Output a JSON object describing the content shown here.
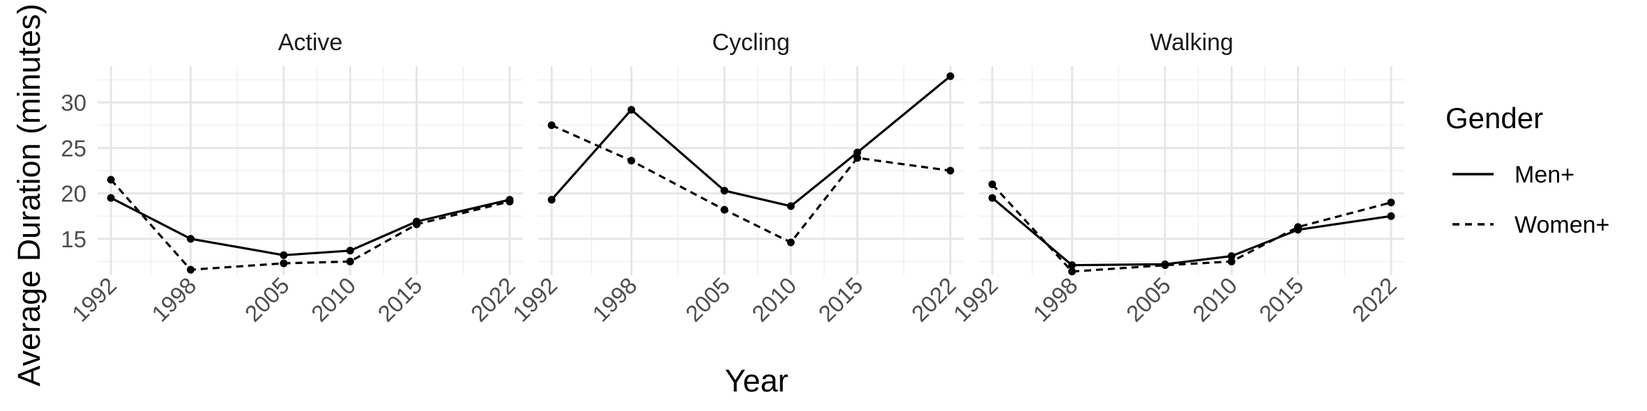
{
  "chart_data": {
    "type": "line",
    "facet_labels": [
      "Active",
      "Cycling",
      "Walking"
    ],
    "x": [
      1992,
      1998,
      2005,
      2010,
      2015,
      2022
    ],
    "x_ticks": [
      "1992",
      "1998",
      "2005",
      "2010",
      "2015",
      "2022"
    ],
    "y_ticks": [
      "15",
      "20",
      "25",
      "30"
    ],
    "xlabel": "Year",
    "ylabel": "Average Duration (minutes)",
    "xlim": [
      1991,
      2023
    ],
    "ylim": [
      11.0,
      34.0
    ],
    "grid": true,
    "legend": {
      "title": "Gender",
      "placement": "right",
      "entries": [
        {
          "label": "Men+",
          "dash": "solid"
        },
        {
          "label": "Women+",
          "dash": "dashed"
        }
      ]
    },
    "panels": [
      {
        "facet": "Active",
        "series": [
          {
            "name": "Men+",
            "values": [
              19.5,
              15.0,
              13.2,
              13.7,
              16.9,
              19.3
            ]
          },
          {
            "name": "Women+",
            "values": [
              21.5,
              11.6,
              12.3,
              12.5,
              16.6,
              19.1
            ]
          }
        ]
      },
      {
        "facet": "Cycling",
        "series": [
          {
            "name": "Men+",
            "values": [
              19.3,
              29.2,
              20.3,
              18.6,
              24.5,
              32.9
            ]
          },
          {
            "name": "Women+",
            "values": [
              27.5,
              23.6,
              18.2,
              14.6,
              23.9,
              22.5
            ]
          }
        ]
      },
      {
        "facet": "Walking",
        "series": [
          {
            "name": "Men+",
            "values": [
              19.5,
              12.1,
              12.2,
              13.1,
              16.0,
              17.5
            ]
          },
          {
            "name": "Women+",
            "values": [
              21.0,
              11.4,
              12.1,
              12.5,
              16.3,
              19.0
            ]
          }
        ]
      }
    ]
  }
}
